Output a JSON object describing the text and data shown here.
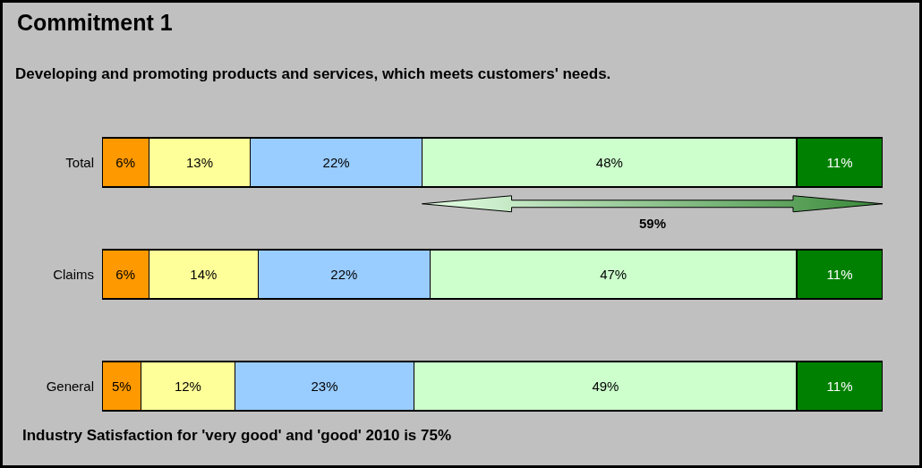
{
  "chart_data": {
    "type": "bar",
    "orientation": "horizontal",
    "stacked": true,
    "title": "Commitment 1",
    "subtitle": "Developing and promoting products and services, which meets customers' needs.",
    "categories": [
      "Total",
      "Claims",
      "General"
    ],
    "series": [
      {
        "color": "#ff9900",
        "values": [
          6,
          6,
          5
        ],
        "value_labels": [
          "6%",
          "6%",
          "5%"
        ]
      },
      {
        "color": "#ffff99",
        "values": [
          13,
          14,
          12
        ],
        "value_labels": [
          "13%",
          "14%",
          "12%"
        ]
      },
      {
        "color": "#99ccff",
        "values": [
          22,
          22,
          23
        ],
        "value_labels": [
          "22%",
          "22%",
          "23%"
        ]
      },
      {
        "color": "#ccffcc",
        "values": [
          48,
          47,
          49
        ],
        "value_labels": [
          "48%",
          "47%",
          "49%"
        ]
      },
      {
        "color": "#008000",
        "values": [
          11,
          11,
          11
        ],
        "value_labels": [
          "11%",
          "11%",
          "11%"
        ]
      }
    ],
    "annotations": [
      "59%",
      "Industry Satisfaction for 'very good' and 'good' 2010 is 75%"
    ],
    "grid": false
  }
}
